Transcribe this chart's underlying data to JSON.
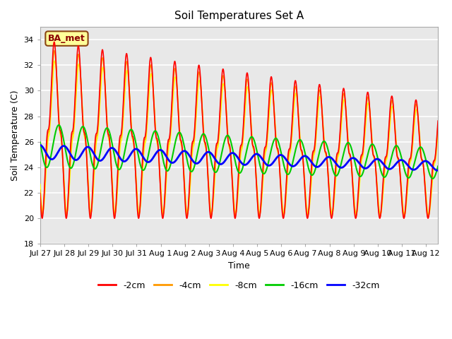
{
  "title": "Soil Temperatures Set A",
  "xlabel": "Time",
  "ylabel": "Soil Temperature (C)",
  "ylim": [
    18,
    35
  ],
  "yticks": [
    18,
    20,
    22,
    24,
    26,
    28,
    30,
    32,
    34
  ],
  "annotation_text": "BA_met",
  "colors": {
    "-2cm": "#ff0000",
    "-4cm": "#ff9900",
    "-8cm": "#ffff00",
    "-16cm": "#00cc00",
    "-32cm": "#0000ff"
  },
  "legend_labels": [
    "-2cm",
    "-4cm",
    "-8cm",
    "-16cm",
    "-32cm"
  ],
  "n_days": 16.5,
  "dt": 0.005,
  "background_color": "#e8e8e8",
  "grid_color": "#ffffff",
  "tick_label_dates": [
    "Jul 27",
    "Jul 28",
    "Jul 29",
    "Jul 30",
    "Jul 31",
    "Aug 1",
    "Aug 2",
    "Aug 3",
    "Aug 4",
    "Aug 5",
    "Aug 6",
    "Aug 7",
    "Aug 8",
    "Aug 9",
    "Aug 10",
    "Aug 11",
    "Aug 12"
  ]
}
